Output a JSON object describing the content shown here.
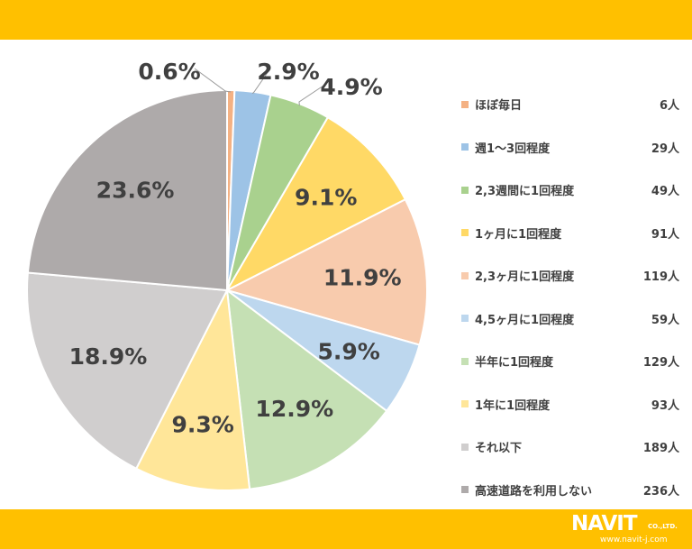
{
  "chart_data": {
    "type": "pie",
    "start_angle_deg": 0,
    "direction": "clockwise",
    "slices": [
      {
        "label": "ほぼ毎日",
        "count": "6人",
        "percent": 0.6,
        "percent_label": "0.6%",
        "color": "#f4b183"
      },
      {
        "label": "週1～3回程度",
        "count": "29人",
        "percent": 2.9,
        "percent_label": "2.9%",
        "color": "#9dc3e6"
      },
      {
        "label": "2,3週間に1回程度",
        "count": "49人",
        "percent": 4.9,
        "percent_label": "4.9%",
        "color": "#a9d18e"
      },
      {
        "label": "1ヶ月に1回程度",
        "count": "91人",
        "percent": 9.1,
        "percent_label": "9.1%",
        "color": "#ffd966"
      },
      {
        "label": "2,3ヶ月に1回程度",
        "count": "119人",
        "percent": 11.9,
        "percent_label": "11.9%",
        "color": "#f8cbad"
      },
      {
        "label": "4,5ヶ月に1回程度",
        "count": "59人",
        "percent": 5.9,
        "percent_label": "5.9%",
        "color": "#bdd7ee"
      },
      {
        "label": "半年に1回程度",
        "count": "129人",
        "percent": 12.9,
        "percent_label": "12.9%",
        "color": "#c5e0b4"
      },
      {
        "label": "1年に1回程度",
        "count": "93人",
        "percent": 9.3,
        "percent_label": "9.3%",
        "color": "#ffe699"
      },
      {
        "label": "それ以下",
        "count": "189人",
        "percent": 18.9,
        "percent_label": "18.9%",
        "color": "#d0cece"
      },
      {
        "label": "高速道路を利用しない",
        "count": "236人",
        "percent": 23.6,
        "percent_label": "23.6%",
        "color": "#aeaaaa"
      }
    ],
    "legend_placement": "right"
  },
  "brand": {
    "name": "NAVIT",
    "suffix": "CO.,LTD.",
    "url": "www.navit-j.com",
    "band_color": "#ffc000"
  }
}
